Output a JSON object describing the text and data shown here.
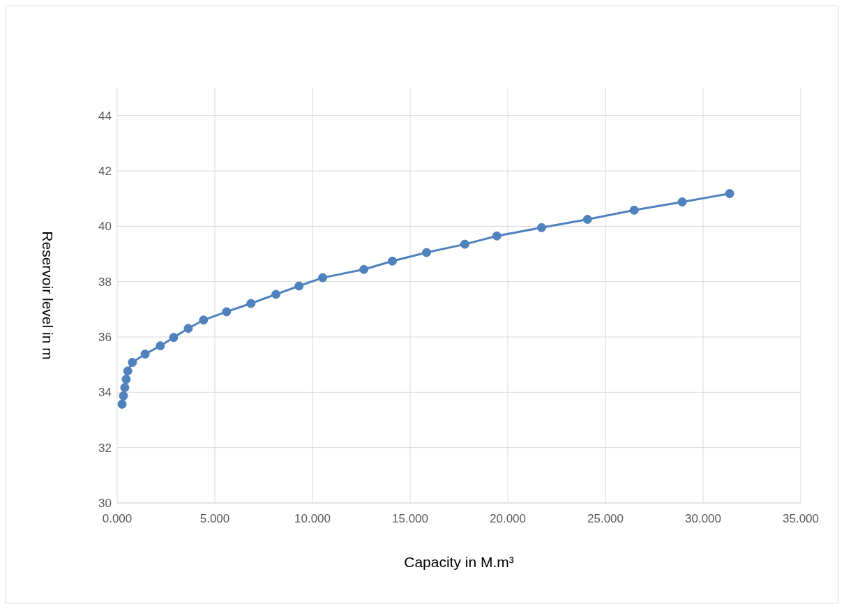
{
  "chart_data": {
    "type": "line",
    "xlabel": "Capacity in M.m³",
    "ylabel": "Reservoir level in m",
    "x": [
      0.25,
      0.32,
      0.39,
      0.46,
      0.54,
      0.78,
      1.43,
      2.21,
      2.89,
      3.64,
      4.42,
      5.6,
      6.85,
      8.13,
      9.31,
      10.52,
      12.63,
      14.09,
      15.84,
      17.8,
      19.44,
      21.73,
      24.08,
      26.47,
      28.93,
      31.36
    ],
    "series": [
      {
        "color": "#4f81bd",
        "values": [
          33.57,
          33.87,
          34.17,
          34.47,
          34.77,
          35.08,
          35.38,
          35.68,
          35.98,
          36.31,
          36.61,
          36.91,
          37.21,
          37.54,
          37.84,
          38.14,
          38.44,
          38.74,
          39.05,
          39.35,
          39.65,
          39.95,
          40.25,
          40.58,
          40.88,
          41.18
        ]
      }
    ],
    "xlim": [
      0,
      35
    ],
    "xticks": [
      {
        "value": 0,
        "label": "0.000"
      },
      {
        "value": 5,
        "label": "5.000"
      },
      {
        "value": 10,
        "label": "10.000"
      },
      {
        "value": 15,
        "label": "15.000"
      },
      {
        "value": 20,
        "label": "20.000"
      },
      {
        "value": 25,
        "label": "25.000"
      },
      {
        "value": 30,
        "label": "30.000"
      },
      {
        "value": 35,
        "label": "35.000"
      }
    ],
    "ylim": [
      30,
      45
    ],
    "yticks": [
      30,
      32,
      34,
      36,
      38,
      40,
      42,
      44
    ],
    "grid": true,
    "marker": "circle",
    "line_style": "solid"
  }
}
